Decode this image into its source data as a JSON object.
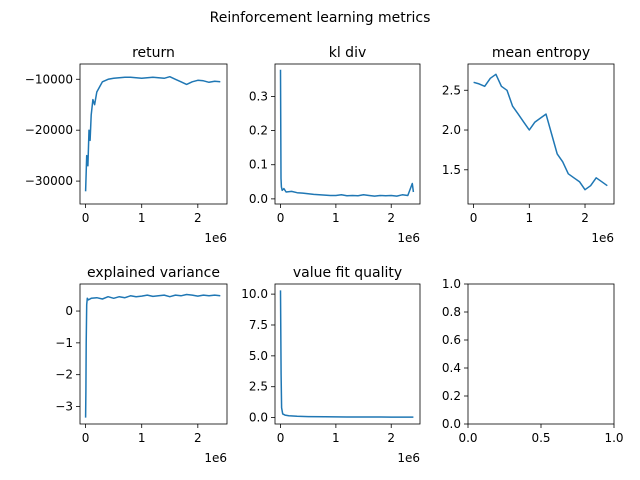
{
  "figure": {
    "title": "Reinforcement learning metrics"
  },
  "line_color": "#1f77b4",
  "chart_data": [
    {
      "type": "line",
      "title": "return",
      "x_multiplier": "1e6",
      "xlim": [
        -100000,
        2520000
      ],
      "ylim": [
        -34500,
        -7000
      ],
      "xticks": [
        {
          "v": 0,
          "label": "0"
        },
        {
          "v": 1000000,
          "label": "1"
        },
        {
          "v": 2000000,
          "label": "2"
        }
      ],
      "yticks": [
        {
          "v": -30000,
          "label": "−30000"
        },
        {
          "v": -20000,
          "label": "−20000"
        },
        {
          "v": -10000,
          "label": "−10000"
        }
      ],
      "series": [
        {
          "x": [
            0,
            20000,
            40000,
            60000,
            80000,
            100000,
            130000,
            160000,
            200000,
            250000,
            300000,
            400000,
            500000,
            600000,
            700000,
            800000,
            900000,
            1000000,
            1100000,
            1200000,
            1300000,
            1400000,
            1500000,
            1600000,
            1700000,
            1800000,
            1900000,
            2000000,
            2100000,
            2200000,
            2300000,
            2400000
          ],
          "y": [
            -32000,
            -25000,
            -27000,
            -20000,
            -22000,
            -17000,
            -14000,
            -15000,
            -12500,
            -11500,
            -10500,
            -10000,
            -9800,
            -9700,
            -9600,
            -9600,
            -9700,
            -9800,
            -9700,
            -9600,
            -9700,
            -9800,
            -9500,
            -10000,
            -10500,
            -11000,
            -10500,
            -10200,
            -10300,
            -10600,
            -10400,
            -10500
          ]
        }
      ]
    },
    {
      "type": "line",
      "title": "kl div",
      "x_multiplier": "1e6",
      "xlim": [
        -100000,
        2520000
      ],
      "ylim": [
        -0.015,
        0.395
      ],
      "xticks": [
        {
          "v": 0,
          "label": "0"
        },
        {
          "v": 1000000,
          "label": "1"
        },
        {
          "v": 2000000,
          "label": "2"
        }
      ],
      "yticks": [
        {
          "v": 0.0,
          "label": "0.0"
        },
        {
          "v": 0.1,
          "label": "0.1"
        },
        {
          "v": 0.2,
          "label": "0.2"
        },
        {
          "v": 0.3,
          "label": "0.3"
        }
      ],
      "series": [
        {
          "x": [
            0,
            8000,
            16000,
            30000,
            60000,
            100000,
            200000,
            300000,
            400000,
            500000,
            600000,
            700000,
            800000,
            900000,
            1000000,
            1100000,
            1200000,
            1300000,
            1400000,
            1500000,
            1600000,
            1700000,
            1800000,
            1900000,
            2000000,
            2100000,
            2200000,
            2300000,
            2380000,
            2400000
          ],
          "y": [
            0.378,
            0.06,
            0.035,
            0.025,
            0.03,
            0.02,
            0.022,
            0.018,
            0.017,
            0.015,
            0.013,
            0.012,
            0.011,
            0.01,
            0.01,
            0.012,
            0.009,
            0.01,
            0.009,
            0.012,
            0.01,
            0.008,
            0.01,
            0.009,
            0.01,
            0.008,
            0.012,
            0.01,
            0.045,
            0.02
          ]
        }
      ]
    },
    {
      "type": "line",
      "title": "mean entropy",
      "x_multiplier": "1e6",
      "xlim": [
        -100000,
        2520000
      ],
      "ylim": [
        1.07,
        2.83
      ],
      "xticks": [
        {
          "v": 0,
          "label": "0"
        },
        {
          "v": 1000000,
          "label": "1"
        },
        {
          "v": 2000000,
          "label": "2"
        }
      ],
      "yticks": [
        {
          "v": 1.5,
          "label": "1.5"
        },
        {
          "v": 2.0,
          "label": "2.0"
        },
        {
          "v": 2.5,
          "label": "2.5"
        }
      ],
      "series": [
        {
          "x": [
            0,
            100000,
            200000,
            300000,
            400000,
            500000,
            600000,
            700000,
            800000,
            900000,
            1000000,
            1100000,
            1200000,
            1300000,
            1400000,
            1500000,
            1600000,
            1700000,
            1800000,
            1900000,
            2000000,
            2100000,
            2200000,
            2300000,
            2400000
          ],
          "y": [
            2.6,
            2.58,
            2.55,
            2.65,
            2.7,
            2.55,
            2.5,
            2.3,
            2.2,
            2.1,
            2.0,
            2.1,
            2.15,
            2.2,
            1.95,
            1.7,
            1.6,
            1.45,
            1.4,
            1.35,
            1.25,
            1.3,
            1.4,
            1.35,
            1.3
          ]
        }
      ]
    },
    {
      "type": "line",
      "title": "explained variance",
      "x_multiplier": "1e6",
      "xlim": [
        -100000,
        2520000
      ],
      "ylim": [
        -3.55,
        0.85
      ],
      "xticks": [
        {
          "v": 0,
          "label": "0"
        },
        {
          "v": 1000000,
          "label": "1"
        },
        {
          "v": 2000000,
          "label": "2"
        }
      ],
      "yticks": [
        {
          "v": -3,
          "label": "−3"
        },
        {
          "v": -2,
          "label": "−2"
        },
        {
          "v": -1,
          "label": "−1"
        },
        {
          "v": 0,
          "label": "0"
        }
      ],
      "series": [
        {
          "x": [
            0,
            5000,
            10000,
            20000,
            30000,
            50000,
            100000,
            200000,
            300000,
            400000,
            500000,
            600000,
            700000,
            800000,
            900000,
            1000000,
            1100000,
            1200000,
            1300000,
            1400000,
            1500000,
            1600000,
            1700000,
            1800000,
            1900000,
            2000000,
            2100000,
            2200000,
            2300000,
            2400000
          ],
          "y": [
            -3.35,
            -2.5,
            -1.0,
            0.2,
            0.4,
            0.35,
            0.4,
            0.42,
            0.38,
            0.45,
            0.4,
            0.45,
            0.42,
            0.48,
            0.45,
            0.47,
            0.5,
            0.46,
            0.48,
            0.5,
            0.45,
            0.5,
            0.48,
            0.52,
            0.5,
            0.47,
            0.5,
            0.48,
            0.5,
            0.48
          ]
        }
      ]
    },
    {
      "type": "line",
      "title": "value fit quality",
      "x_multiplier": "1e6",
      "xlim": [
        -100000,
        2520000
      ],
      "ylim": [
        -0.52,
        10.82
      ],
      "xticks": [
        {
          "v": 0,
          "label": "0"
        },
        {
          "v": 1000000,
          "label": "1"
        },
        {
          "v": 2000000,
          "label": "2"
        }
      ],
      "yticks": [
        {
          "v": 0.0,
          "label": "0.0"
        },
        {
          "v": 2.5,
          "label": "2.5"
        },
        {
          "v": 5.0,
          "label": "5.0"
        },
        {
          "v": 7.5,
          "label": "7.5"
        },
        {
          "v": 10.0,
          "label": "10.0"
        }
      ],
      "series": [
        {
          "x": [
            0,
            10000,
            20000,
            40000,
            80000,
            150000,
            300000,
            500000,
            800000,
            1200000,
            1600000,
            2000000,
            2400000
          ],
          "y": [
            10.3,
            3.5,
            0.8,
            0.3,
            0.2,
            0.15,
            0.1,
            0.08,
            0.06,
            0.05,
            0.05,
            0.04,
            0.04
          ]
        }
      ]
    },
    {
      "type": "line",
      "title": "",
      "x_multiplier": "",
      "xlim": [
        0,
        1
      ],
      "ylim": [
        0,
        1
      ],
      "xticks": [
        {
          "v": 0,
          "label": "0.0"
        },
        {
          "v": 0.5,
          "label": "0.5"
        },
        {
          "v": 1.0,
          "label": "1.0"
        }
      ],
      "yticks": [
        {
          "v": 0.0,
          "label": "0.0"
        },
        {
          "v": 0.2,
          "label": "0.2"
        },
        {
          "v": 0.4,
          "label": "0.4"
        },
        {
          "v": 0.6,
          "label": "0.6"
        },
        {
          "v": 0.8,
          "label": "0.8"
        },
        {
          "v": 1.0,
          "label": "1.0"
        }
      ],
      "series": []
    }
  ]
}
